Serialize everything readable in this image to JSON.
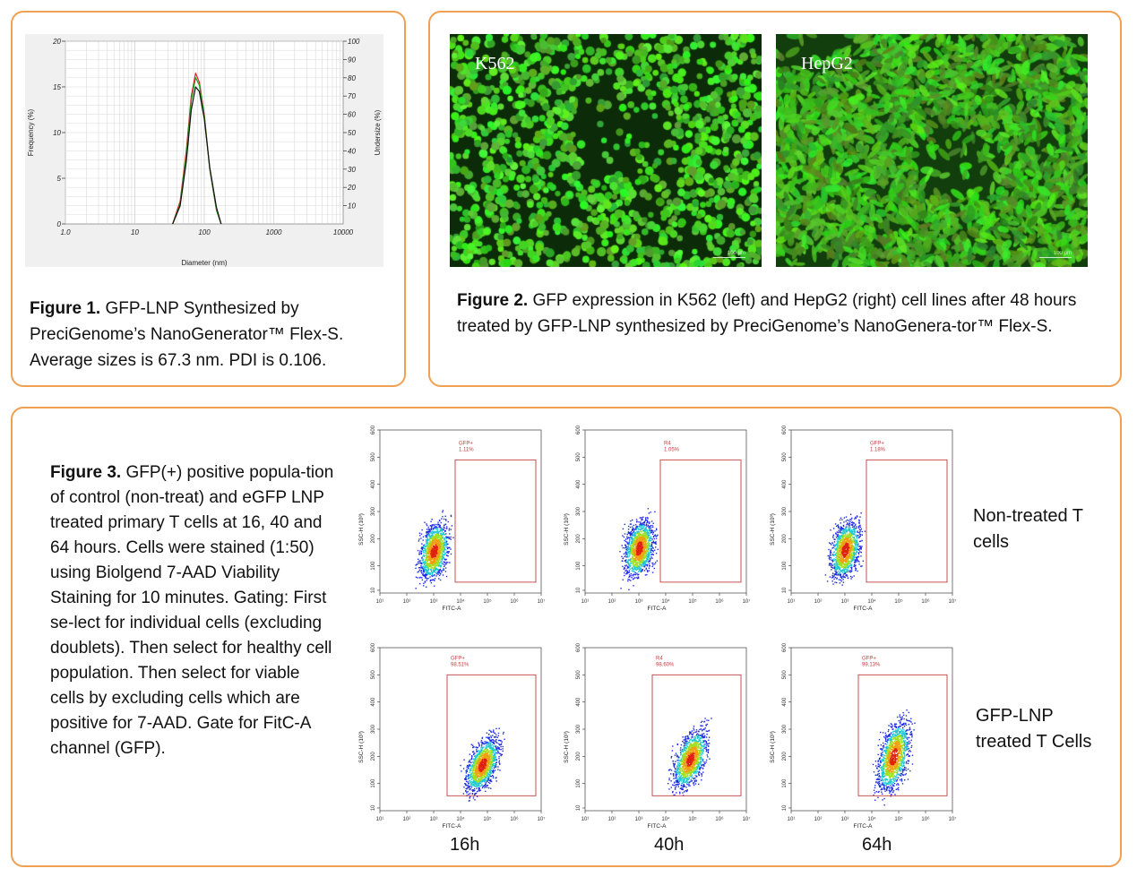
{
  "figure1": {
    "caption_bold": "Figure 1.",
    "caption_text": " GFP-LNP Synthesized by PreciGenome’s NanoGenerator™ Flex-S. Average sizes is 67.3 nm. PDI is 0.106."
  },
  "figure2": {
    "caption_bold": "Figure 2.",
    "caption_text": " GFP expression in K562 (left) and HepG2 (right) cell lines after 48 hours treated by GFP-LNP synthesized by PreciGenome’s NanoGenera-tor™ Flex-S.",
    "left_label": "K562",
    "right_label": "HepG2",
    "scale_text": "100 μm"
  },
  "figure3": {
    "caption_bold": "Figure 3.",
    "caption_text": " GFP(+) positive popula-tion of control (non-treat) and eGFP LNP treated primary T cells at 16, 40 and 64 hours. Cells were stained (1:50) using Biolgend 7-AAD Viability Staining for 10 minutes. Gating: First se-lect for individual cells (excluding doublets). Then select for healthy cell population. Then select for viable cells by excluding cells which are positive for 7-AAD. Gate for FitC-A channel (GFP).",
    "row_labels": [
      "Non-treated T cells",
      "GFP-LNP treated T Cells"
    ],
    "time_labels": [
      "16h",
      "40h",
      "64h"
    ],
    "x_axis_label": "FITC-A",
    "y_axis_label": "SSC-H (10³)",
    "x_ticks": [
      "10¹",
      "10²",
      "10³",
      "10⁴",
      "10⁵",
      "10⁶",
      "10⁷"
    ],
    "y_ticks": [
      "10",
      "100",
      "200",
      "300",
      "400",
      "500",
      "600"
    ]
  },
  "chart_data": [
    {
      "type": "line",
      "xlabel": "Diameter (nm)",
      "ylabel": "Frequency (%)",
      "y2label": "Undersize (%)",
      "xscale": "log",
      "xlim": [
        1,
        10000
      ],
      "ylim": [
        0,
        20
      ],
      "y2lim": [
        0,
        100
      ],
      "x_ticks": [
        "1.0",
        "10",
        "100",
        "1000",
        "10000"
      ],
      "y_ticks": [
        "0",
        "5",
        "10",
        "15",
        "20"
      ],
      "y2_ticks": [
        "10",
        "20",
        "30",
        "40",
        "50",
        "60",
        "70",
        "80",
        "90",
        "100"
      ],
      "grid": true,
      "series": [
        {
          "color": "#e02020",
          "x": [
            35,
            45,
            55,
            65,
            75,
            85,
            100,
            120,
            150,
            175
          ],
          "values": [
            0,
            2.5,
            8,
            14,
            16.5,
            15.5,
            12,
            6,
            1.5,
            0
          ]
        },
        {
          "color": "#20a020",
          "x": [
            35,
            45,
            55,
            65,
            75,
            85,
            100,
            120,
            150,
            175
          ],
          "values": [
            0,
            2.2,
            7.5,
            13.5,
            16,
            15.2,
            11.8,
            6,
            1.5,
            0
          ]
        },
        {
          "color": "#111111",
          "x": [
            35,
            45,
            55,
            65,
            75,
            85,
            100,
            120,
            150,
            175
          ],
          "values": [
            0,
            2,
            6.8,
            12.5,
            15,
            14.5,
            11.5,
            6.2,
            1.8,
            0
          ]
        }
      ]
    },
    {
      "type": "scatter",
      "xlabel": "FITC-A",
      "ylabel": "SSC-H (10³)",
      "xscale": "log",
      "plots": [
        {
          "row": 0,
          "col": 0,
          "gate_label": "GFP+",
          "gate_percent": "1.11%",
          "center": [
            3.0,
            155
          ],
          "spread": [
            0.35,
            70
          ],
          "tilt": 0.5
        },
        {
          "row": 0,
          "col": 1,
          "gate_label": "R4",
          "gate_percent": "1.05%",
          "center": [
            3.0,
            165
          ],
          "spread": [
            0.35,
            70
          ],
          "tilt": 0.5
        },
        {
          "row": 0,
          "col": 2,
          "gate_label": "GFP+",
          "gate_percent": "1.18%",
          "center": [
            3.0,
            160
          ],
          "spread": [
            0.35,
            70
          ],
          "tilt": 0.5
        },
        {
          "row": 1,
          "col": 0,
          "gate_label": "GFP+",
          "gate_percent": "98.51%",
          "center": [
            4.8,
            170
          ],
          "spread": [
            0.4,
            60
          ],
          "tilt": 0.9
        },
        {
          "row": 1,
          "col": 1,
          "gate_label": "R4",
          "gate_percent": "98.60%",
          "center": [
            4.9,
            190
          ],
          "spread": [
            0.4,
            65
          ],
          "tilt": 0.9
        },
        {
          "row": 1,
          "col": 2,
          "gate_label": "GFP+",
          "gate_percent": "99.13%",
          "center": [
            4.8,
            200
          ],
          "spread": [
            0.38,
            80
          ],
          "tilt": 0.8
        }
      ]
    }
  ]
}
